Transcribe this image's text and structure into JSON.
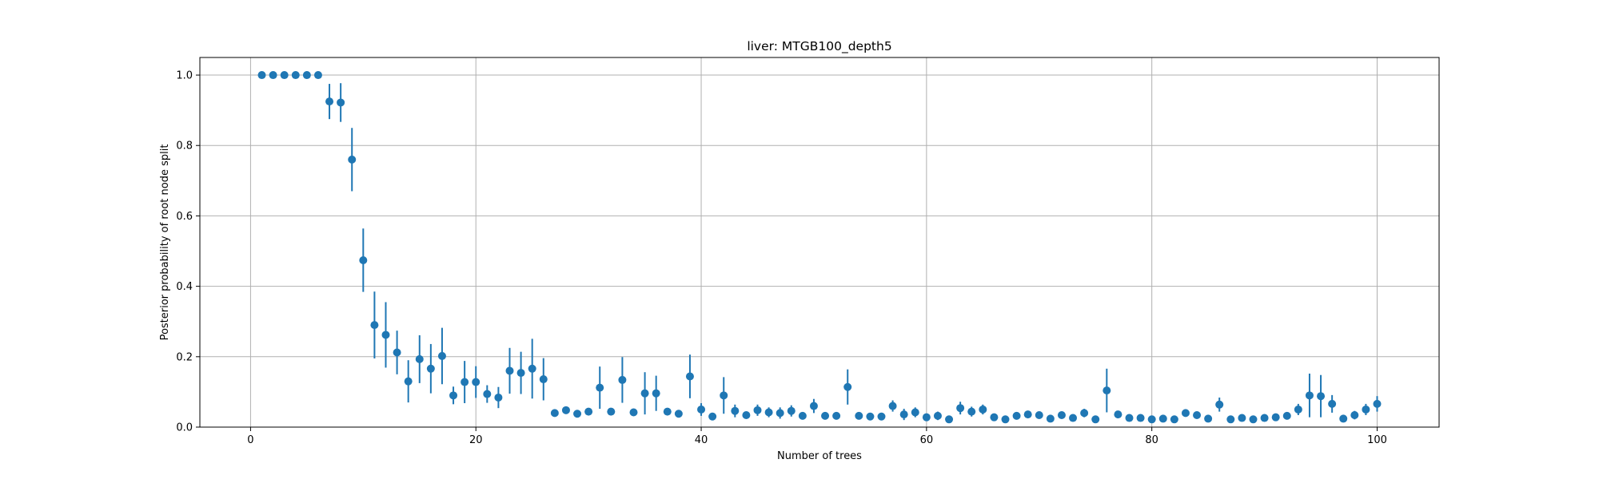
{
  "chart_data": {
    "type": "scatter",
    "title": "liver: MTGB100_depth5",
    "xlabel": "Number of trees",
    "ylabel": "Posterior probability of root node split",
    "xlim": [
      -4.5,
      105.5
    ],
    "ylim": [
      0.0,
      1.05
    ],
    "xticks": [
      0,
      20,
      40,
      60,
      80,
      100
    ],
    "yticks": [
      0.0,
      0.2,
      0.4,
      0.6,
      0.8,
      1.0
    ],
    "xtick_labels": [
      "0",
      "20",
      "40",
      "60",
      "80",
      "100"
    ],
    "ytick_labels": [
      "0.0",
      "0.2",
      "0.4",
      "0.6",
      "0.8",
      "1.0"
    ],
    "grid": true,
    "marker_color": "#1f77b4",
    "error_bars": true,
    "series": [
      {
        "x": [
          1,
          2,
          3,
          4,
          5,
          6,
          7,
          8,
          9,
          10,
          11,
          12,
          13,
          14,
          15,
          16,
          17,
          18,
          19,
          20,
          21,
          22,
          23,
          24,
          25,
          26,
          27,
          28,
          29,
          30,
          31,
          32,
          33,
          34,
          35,
          36,
          37,
          38,
          39,
          40,
          41,
          42,
          43,
          44,
          45,
          46,
          47,
          48,
          49,
          50,
          51,
          52,
          53,
          54,
          55,
          56,
          57,
          58,
          59,
          60,
          61,
          62,
          63,
          64,
          65,
          66,
          67,
          68,
          69,
          70,
          71,
          72,
          73,
          74,
          75,
          76,
          77,
          78,
          79,
          80,
          81,
          82,
          83,
          84,
          85,
          86,
          87,
          88,
          89,
          90,
          91,
          92,
          93,
          94,
          95,
          96,
          97,
          98,
          99,
          100
        ],
        "y": [
          1.0,
          1.0,
          1.0,
          1.0,
          1.0,
          1.0,
          0.925,
          0.922,
          0.76,
          0.474,
          0.29,
          0.262,
          0.212,
          0.13,
          0.193,
          0.166,
          0.202,
          0.09,
          0.128,
          0.128,
          0.094,
          0.084,
          0.16,
          0.154,
          0.166,
          0.136,
          0.04,
          0.048,
          0.038,
          0.044,
          0.112,
          0.044,
          0.134,
          0.042,
          0.096,
          0.096,
          0.044,
          0.038,
          0.144,
          0.05,
          0.03,
          0.09,
          0.046,
          0.034,
          0.048,
          0.042,
          0.04,
          0.046,
          0.032,
          0.06,
          0.032,
          0.032,
          0.114,
          0.032,
          0.03,
          0.03,
          0.06,
          0.036,
          0.042,
          0.028,
          0.032,
          0.022,
          0.054,
          0.044,
          0.05,
          0.028,
          0.022,
          0.032,
          0.036,
          0.034,
          0.024,
          0.034,
          0.026,
          0.04,
          0.022,
          0.104,
          0.036,
          0.026,
          0.026,
          0.022,
          0.024,
          0.022,
          0.04,
          0.034,
          0.024,
          0.064,
          0.022,
          0.026,
          0.022,
          0.026,
          0.028,
          0.032,
          0.05,
          0.09,
          0.088,
          0.066,
          0.024,
          0.034,
          0.05,
          0.066
        ],
        "yerr": [
          0.0,
          0.0,
          0.0,
          0.0,
          0.0,
          0.0,
          0.05,
          0.055,
          0.09,
          0.09,
          0.095,
          0.093,
          0.062,
          0.06,
          0.068,
          0.07,
          0.08,
          0.025,
          0.06,
          0.045,
          0.025,
          0.03,
          0.065,
          0.06,
          0.085,
          0.06,
          0.01,
          0.01,
          0.0,
          0.0,
          0.06,
          0.0,
          0.065,
          0.0,
          0.06,
          0.05,
          0.0,
          0.0,
          0.062,
          0.018,
          0.0,
          0.052,
          0.018,
          0.0,
          0.016,
          0.014,
          0.016,
          0.016,
          0.0,
          0.02,
          0.0,
          0.0,
          0.05,
          0.0,
          0.0,
          0.0,
          0.016,
          0.016,
          0.014,
          0.0,
          0.012,
          0.0,
          0.018,
          0.014,
          0.014,
          0.0,
          0.0,
          0.0,
          0.0,
          0.0,
          0.0,
          0.0,
          0.0,
          0.012,
          0.0,
          0.062,
          0.0,
          0.0,
          0.0,
          0.0,
          0.0,
          0.0,
          0.01,
          0.0,
          0.0,
          0.02,
          0.0,
          0.0,
          0.0,
          0.0,
          0.0,
          0.0,
          0.016,
          0.062,
          0.06,
          0.025,
          0.0,
          0.012,
          0.016,
          0.022
        ]
      }
    ]
  }
}
